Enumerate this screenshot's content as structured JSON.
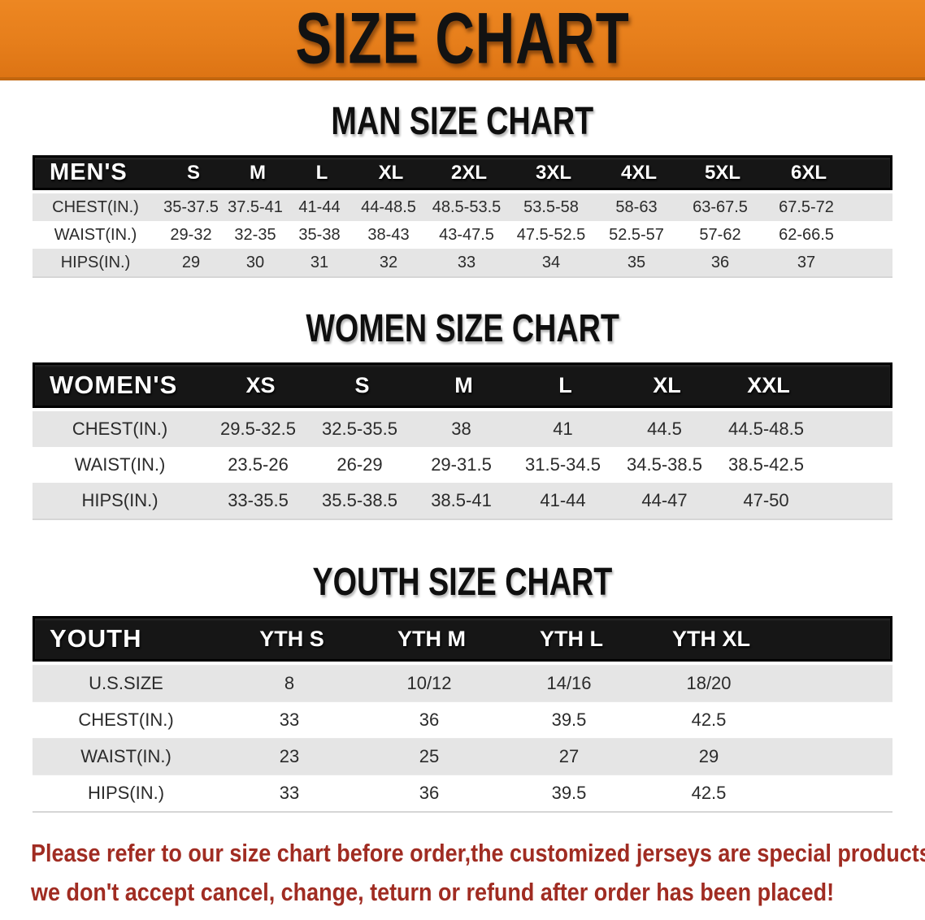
{
  "banner": {
    "title": "SIZE CHART"
  },
  "colors": {
    "banner_orange": "#E67E1B",
    "banner_orange_dark": "#C2660F",
    "band_black": "#161616",
    "row_gray": "#E5E5E5",
    "footer_red": "#A02C22"
  },
  "men": {
    "heading": "MAN SIZE CHART",
    "header_label": "MEN'S",
    "columns": [
      "S",
      "M",
      "L",
      "XL",
      "2XL",
      "3XL",
      "4XL",
      "5XL",
      "6XL"
    ],
    "rows": [
      {
        "label": "CHEST(IN.)",
        "values": [
          "35-37.5",
          "37.5-41",
          "41-44",
          "44-48.5",
          "48.5-53.5",
          "53.5-58",
          "58-63",
          "63-67.5",
          "67.5-72"
        ]
      },
      {
        "label": "WAIST(IN.)",
        "values": [
          "29-32",
          "32-35",
          "35-38",
          "38-43",
          "43-47.5",
          "47.5-52.5",
          "52.5-57",
          "57-62",
          "62-66.5"
        ]
      },
      {
        "label": "HIPS(IN.)",
        "values": [
          "29",
          "30",
          "31",
          "32",
          "33",
          "34",
          "35",
          "36",
          "37"
        ]
      }
    ]
  },
  "women": {
    "heading": "WOMEN SIZE CHART",
    "header_label": "WOMEN'S",
    "columns": [
      "XS",
      "S",
      "M",
      "L",
      "XL",
      "XXL"
    ],
    "rows": [
      {
        "label": "CHEST(IN.)",
        "values": [
          "29.5-32.5",
          "32.5-35.5",
          "38",
          "41",
          "44.5",
          "44.5-48.5"
        ]
      },
      {
        "label": "WAIST(IN.)",
        "values": [
          "23.5-26",
          "26-29",
          "29-31.5",
          "31.5-34.5",
          "34.5-38.5",
          "38.5-42.5"
        ]
      },
      {
        "label": "HIPS(IN.)",
        "values": [
          "33-35.5",
          "35.5-38.5",
          "38.5-41",
          "41-44",
          "44-47",
          "47-50"
        ]
      }
    ]
  },
  "youth": {
    "heading": "YOUTH SIZE CHART",
    "header_label": "YOUTH",
    "columns": [
      "YTH S",
      "YTH M",
      "YTH L",
      "YTH XL"
    ],
    "rows": [
      {
        "label": "U.S.SIZE",
        "values": [
          "8",
          "10/12",
          "14/16",
          "18/20"
        ]
      },
      {
        "label": "CHEST(IN.)",
        "values": [
          "33",
          "36",
          "39.5",
          "42.5"
        ]
      },
      {
        "label": "WAIST(IN.)",
        "values": [
          "23",
          "25",
          "27",
          "29"
        ]
      },
      {
        "label": "HIPS(IN.)",
        "values": [
          "33",
          "36",
          "39.5",
          "42.5"
        ]
      }
    ]
  },
  "footer": {
    "line1": "Please refer to our size chart before order,the customized jerseys are special products,",
    "line2": "we don't accept cancel, change, teturn or refund after order has been placed!"
  }
}
